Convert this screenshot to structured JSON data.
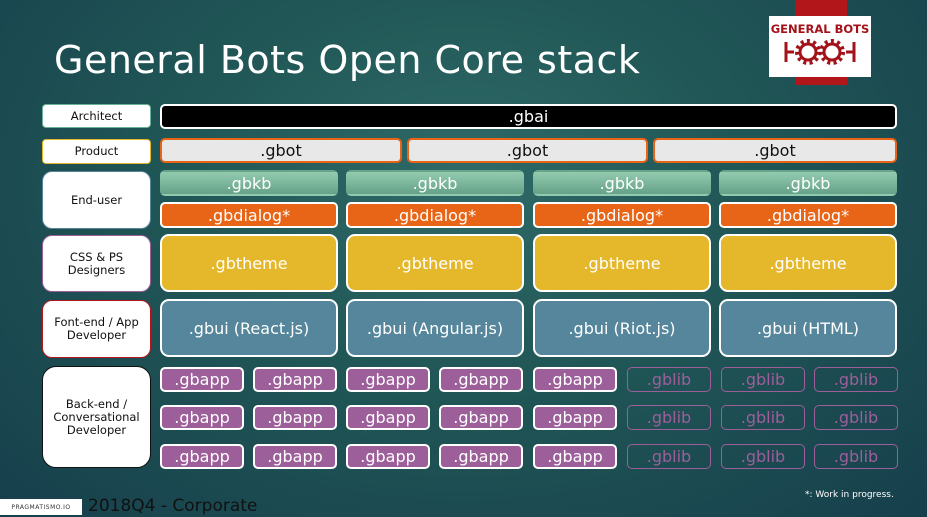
{
  "title": "General Bots Open Core stack",
  "logo_text": "GENERAL BOTS",
  "roles": [
    "Architect",
    "Product",
    "End-user",
    "CSS & PS\nDesigners",
    "Font-end / App\nDeveloper",
    "Back-end  /\nConversational\nDeveloper"
  ],
  "gbai": ".gbai",
  "gbot": [
    ".gbot",
    ".gbot",
    ".gbot"
  ],
  "gbkb": [
    ".gbkb",
    ".gbkb",
    ".gbkb",
    ".gbkb"
  ],
  "gbdialog": [
    ".gbdialog*",
    ".gbdialog*",
    ".gbdialog*",
    ".gbdialog*"
  ],
  "gbtheme": [
    ".gbtheme",
    ".gbtheme",
    ".gbtheme",
    ".gbtheme"
  ],
  "gbui": [
    ".gbui (React.js)",
    ".gbui (Angular.js)",
    ".gbui (Riot.js)",
    ".gbui (HTML)"
  ],
  "packages": [
    [
      ".gbapp",
      ".gbapp",
      ".gbapp",
      ".gbapp",
      ".gbapp",
      ".gblib",
      ".gblib",
      ".gblib"
    ],
    [
      ".gbapp",
      ".gbapp",
      ".gbapp",
      ".gbapp",
      ".gbapp",
      ".gblib",
      ".gblib",
      ".gblib"
    ],
    [
      ".gbapp",
      ".gbapp",
      ".gbapp",
      ".gbapp",
      ".gbapp",
      ".gblib",
      ".gblib",
      ".gblib"
    ]
  ],
  "footer": {
    "company": "PRAGMATISMO.IO",
    "period": "2018Q4 - Corporate",
    "note": "*: Work in progress."
  },
  "colors": {
    "gbai": "#000000",
    "gbot": "#e8e8e8",
    "gbkb": "#7dbb9f",
    "gbdialog": "#e86416",
    "gbtheme": "#e5b72b",
    "gbui": "#55869b",
    "gbapp": "#9d5f9a",
    "gblib": "#9d5f9a",
    "logo": "#a31218"
  }
}
